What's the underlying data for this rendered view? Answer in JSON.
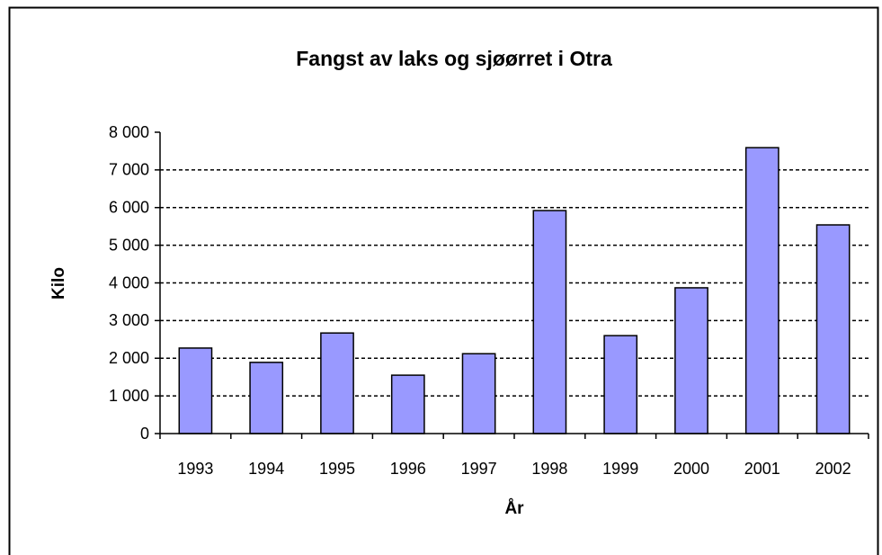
{
  "chart_data": {
    "type": "bar",
    "title": "Fangst av laks og sjøørret i Otra",
    "x_label": "År",
    "y_label": "Kilo",
    "categories": [
      "1993",
      "1994",
      "1995",
      "1996",
      "1997",
      "1998",
      "1999",
      "2000",
      "2001",
      "2002"
    ],
    "values": [
      2270,
      1890,
      2670,
      1550,
      2120,
      5920,
      2600,
      3870,
      7590,
      5540
    ],
    "color": "#9999ff",
    "ylim": [
      0,
      8000
    ],
    "yticks": [
      0,
      {
        "value": 1000,
        "label": "1 000"
      },
      {
        "value": 2000,
        "label": "2 000"
      },
      {
        "value": 3000,
        "label": "3 000"
      },
      {
        "value": 4000,
        "label": "4 000"
      },
      {
        "value": 5000,
        "label": "5 000"
      },
      {
        "value": 6000,
        "label": "6 000"
      },
      {
        "value": 7000,
        "label": "7 000"
      },
      {
        "value": 8000,
        "label": "8 000"
      }
    ],
    "grid": true
  }
}
